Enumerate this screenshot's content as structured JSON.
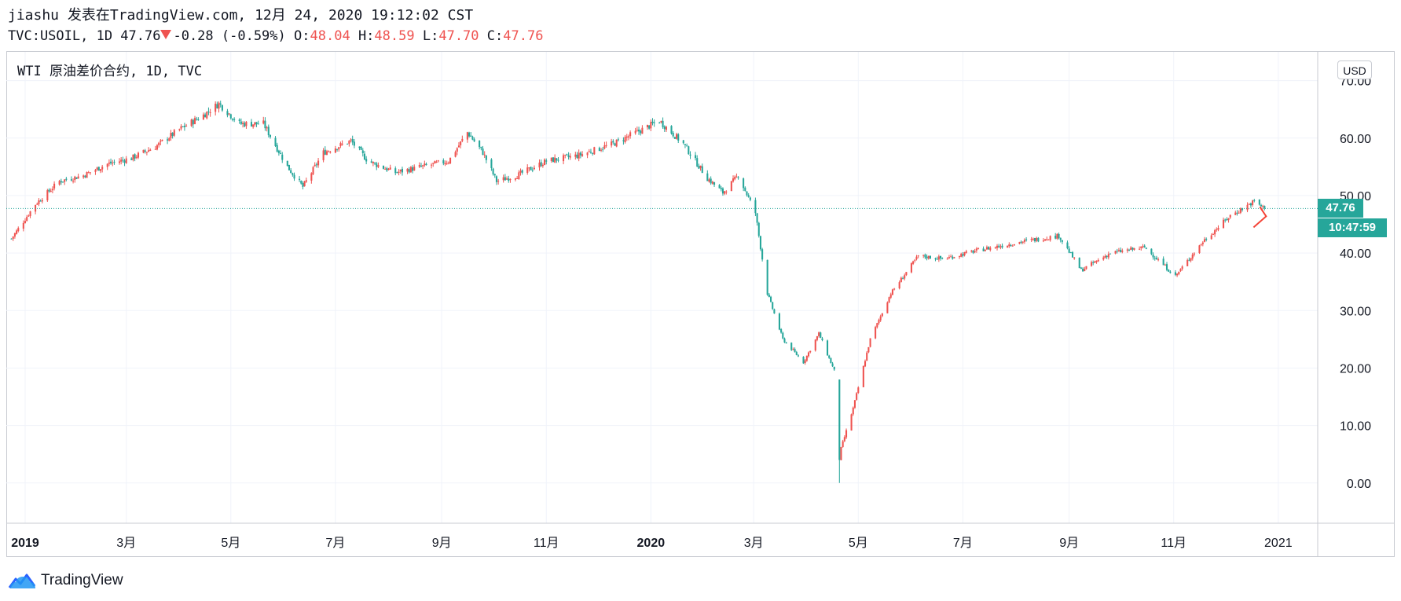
{
  "header": {
    "publish_line": "jiashu 发表在TradingView.com, 12月 24, 2020 19:12:02 CST",
    "symbol_line": "TVC:USOIL, 1D 47.76",
    "change": "-0.28 (-0.59%)",
    "open_label": "O:",
    "open_value": "48.04",
    "high_label": "H:",
    "high_value": "48.59",
    "low_label": "L:",
    "low_value": "47.70",
    "close_label": "C:",
    "close_value": "47.76"
  },
  "legend_title": "WTI 原油差价合约, 1D, TVC",
  "currency_button": "USD",
  "last_price_label": "47.76",
  "countdown_label": "10:47:59",
  "brand": "TradingView",
  "colors": {
    "up": "#ef5350",
    "down": "#26a69a",
    "grid": "#f0f3fa",
    "text": "#131722",
    "frame": "#c8cbd2"
  },
  "chart_data": {
    "type": "candlestick",
    "ylim": [
      -7,
      75
    ],
    "y_ticks": [
      "0.00",
      "10.00",
      "20.00",
      "30.00",
      "40.00",
      "50.00",
      "60.00",
      "70.00"
    ],
    "x_ticks": [
      "2019",
      "3月",
      "5月",
      "7月",
      "9月",
      "11月",
      "2020",
      "3月",
      "5月",
      "7月",
      "9月",
      "11月",
      "2021"
    ],
    "x_ticks_bold": [
      true,
      false,
      false,
      false,
      false,
      false,
      true,
      false,
      false,
      false,
      false,
      false,
      false
    ],
    "x_tick_dates": [
      "2019-01-01",
      "2019-03-01",
      "2019-05-01",
      "2019-07-01",
      "2019-09-01",
      "2019-11-01",
      "2020-01-01",
      "2020-03-01",
      "2020-05-01",
      "2020-07-01",
      "2020-09-01",
      "2020-11-01",
      "2021-01-01"
    ],
    "last_close": 47.76,
    "close_path": [
      [
        "2018-12-24",
        42.5
      ],
      [
        "2019-01-07",
        48.5
      ],
      [
        "2019-01-21",
        52.5
      ],
      [
        "2019-02-04",
        53.5
      ],
      [
        "2019-02-18",
        55.5
      ],
      [
        "2019-03-04",
        56.5
      ],
      [
        "2019-03-18",
        58.5
      ],
      [
        "2019-04-01",
        61.5
      ],
      [
        "2019-04-15",
        64.0
      ],
      [
        "2019-04-24",
        66.0
      ],
      [
        "2019-05-06",
        62.5
      ],
      [
        "2019-05-20",
        62.5
      ],
      [
        "2019-06-03",
        55.0
      ],
      [
        "2019-06-12",
        51.5
      ],
      [
        "2019-06-24",
        57.5
      ],
      [
        "2019-07-10",
        59.5
      ],
      [
        "2019-07-20",
        56.0
      ],
      [
        "2019-08-05",
        54.0
      ],
      [
        "2019-08-20",
        55.0
      ],
      [
        "2019-09-05",
        56.0
      ],
      [
        "2019-09-16",
        61.0
      ],
      [
        "2019-09-25",
        57.5
      ],
      [
        "2019-10-03",
        52.5
      ],
      [
        "2019-10-15",
        53.5
      ],
      [
        "2019-11-01",
        56.0
      ],
      [
        "2019-11-20",
        57.0
      ],
      [
        "2019-12-10",
        59.0
      ],
      [
        "2019-12-27",
        61.5
      ],
      [
        "2020-01-06",
        63.0
      ],
      [
        "2020-01-20",
        59.0
      ],
      [
        "2020-02-03",
        53.0
      ],
      [
        "2020-02-12",
        50.5
      ],
      [
        "2020-02-21",
        53.5
      ],
      [
        "2020-03-02",
        47.0
      ],
      [
        "2020-03-09",
        33.0
      ],
      [
        "2020-03-18",
        25.0
      ],
      [
        "2020-03-30",
        21.0
      ],
      [
        "2020-04-08",
        26.0
      ],
      [
        "2020-04-17",
        19.5
      ],
      [
        "2020-04-20",
        5.0
      ],
      [
        "2020-04-28",
        13.0
      ],
      [
        "2020-05-08",
        25.0
      ],
      [
        "2020-05-20",
        33.0
      ],
      [
        "2020-06-05",
        39.5
      ],
      [
        "2020-06-20",
        39.0
      ],
      [
        "2020-07-10",
        40.5
      ],
      [
        "2020-08-05",
        42.0
      ],
      [
        "2020-08-26",
        43.0
      ],
      [
        "2020-09-08",
        37.0
      ],
      [
        "2020-09-25",
        40.0
      ],
      [
        "2020-10-15",
        41.0
      ],
      [
        "2020-11-02",
        36.0
      ],
      [
        "2020-11-18",
        42.0
      ],
      [
        "2020-12-04",
        46.5
      ],
      [
        "2020-12-18",
        49.0
      ],
      [
        "2020-12-24",
        47.76
      ]
    ]
  }
}
